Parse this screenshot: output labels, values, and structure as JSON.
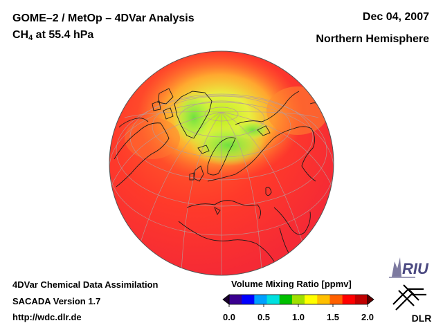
{
  "header": {
    "title_line1": "GOME–2 / MetOp – 4DVar Analysis",
    "species": "CH",
    "species_sub": "4",
    "level": " at 55.4 hPa",
    "date": "Dec 04, 2007",
    "region": "Northern Hemisphere"
  },
  "footer": {
    "line1": "4DVar Chemical Data Assimilation",
    "line2": "SACADA Version 1.7",
    "line3": "http://wdc.dlr.de"
  },
  "colorbar": {
    "title": "Volume Mixing Ratio [ppmv]",
    "ticks": [
      "0.0",
      "0.5",
      "1.0",
      "1.5",
      "2.0"
    ],
    "min": 0.0,
    "max": 2.0,
    "colors": [
      "#3a0090",
      "#0000ff",
      "#00a0ff",
      "#00e0e0",
      "#00c000",
      "#a0e000",
      "#ffff00",
      "#ffc000",
      "#ff6000",
      "#ff0000",
      "#c00000"
    ]
  },
  "logos": {
    "riu": "RIU",
    "dlr": "DLR"
  },
  "map": {
    "projection": "orthographic",
    "center": "north pole",
    "background_value_ppmv": 1.85,
    "polar_high_value_ppmv": 1.05
  }
}
